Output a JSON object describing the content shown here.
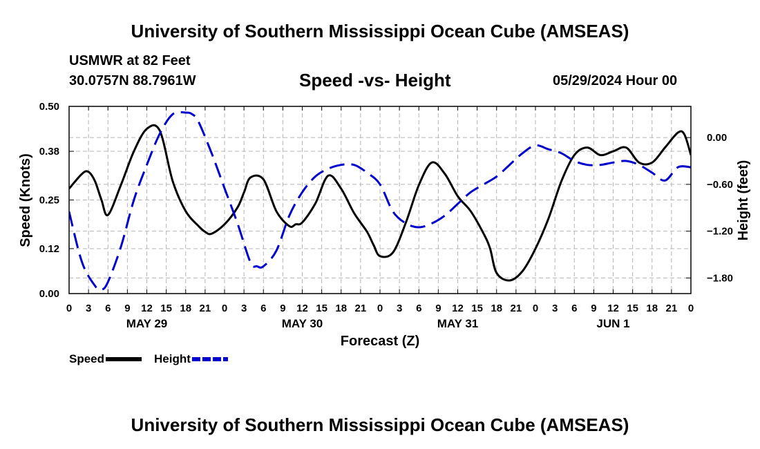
{
  "header": {
    "title": "University of Southern Mississippi Ocean Cube (AMSEAS)",
    "station": "USMWR at 82 Feet",
    "coords": "30.0757N  88.7961W",
    "subtitle": "Speed -vs- Height",
    "datetime": "05/29/2024 Hour 00"
  },
  "footer": {
    "title": "University of Southern Mississippi Ocean Cube (AMSEAS)"
  },
  "chart_data": {
    "type": "line",
    "title": "Speed -vs- Height",
    "xlabel": "Forecast (Z)",
    "ylabel": "Speed (Knots)",
    "y2label": "Height (feet)",
    "xlim": [
      0,
      96
    ],
    "ylim": [
      0,
      0.5
    ],
    "y2lim": [
      -2.0,
      0.4
    ],
    "x_tick_step_hours": 3,
    "x_tick_labels": [
      "0",
      "3",
      "6",
      "9",
      "12",
      "15",
      "18",
      "21",
      "0",
      "3",
      "6",
      "9",
      "12",
      "15",
      "18",
      "21",
      "0",
      "3",
      "6",
      "9",
      "12",
      "15",
      "18",
      "21",
      "0",
      "3",
      "6",
      "9",
      "12",
      "15",
      "18",
      "21",
      "0"
    ],
    "y_ticks": [
      0.0,
      0.12,
      0.25,
      0.38,
      0.5
    ],
    "y_tick_labels": [
      "0.00",
      "0.12",
      "0.25",
      "0.38",
      "0.50"
    ],
    "y2_ticks": [
      0.0,
      -0.6,
      -1.2,
      -1.8
    ],
    "y2_tick_labels": [
      "0.00",
      "−0.60",
      "−1.20",
      "−1.80"
    ],
    "day_labels": [
      {
        "label": "MAY 29",
        "hour": 12
      },
      {
        "label": "MAY 30",
        "hour": 36
      },
      {
        "label": "MAY 31",
        "hour": 60
      },
      {
        "label": "JUN 1",
        "hour": 84
      }
    ],
    "grid": true,
    "legend_position": "bottom-left",
    "series": [
      {
        "name": "Speed",
        "axis": "left",
        "color": "#000000",
        "dash": "solid",
        "x": [
          0,
          2,
          3,
          4,
          5,
          6,
          8,
          10,
          12,
          14,
          16,
          18,
          20,
          21,
          22,
          24,
          26,
          27,
          28,
          30,
          32,
          34,
          35,
          36,
          38,
          40,
          42,
          44,
          46,
          47,
          48,
          50,
          52,
          54,
          56,
          58,
          60,
          62,
          64,
          65,
          66,
          68,
          70,
          72,
          74,
          76,
          78,
          80,
          82,
          84,
          86,
          88,
          90,
          92,
          94,
          95,
          96
        ],
        "values": [
          0.28,
          0.32,
          0.325,
          0.3,
          0.25,
          0.21,
          0.29,
          0.38,
          0.44,
          0.435,
          0.3,
          0.22,
          0.18,
          0.165,
          0.16,
          0.185,
          0.23,
          0.27,
          0.31,
          0.305,
          0.22,
          0.18,
          0.185,
          0.19,
          0.24,
          0.315,
          0.28,
          0.215,
          0.165,
          0.13,
          0.1,
          0.11,
          0.19,
          0.29,
          0.35,
          0.32,
          0.26,
          0.22,
          0.16,
          0.12,
          0.055,
          0.035,
          0.06,
          0.12,
          0.2,
          0.3,
          0.37,
          0.39,
          0.37,
          0.38,
          0.39,
          0.35,
          0.35,
          0.39,
          0.43,
          0.425,
          0.37
        ]
      },
      {
        "name": "Height",
        "axis": "right",
        "color": "#0000cc",
        "dash": "dashed",
        "x": [
          0,
          2,
          4,
          5,
          6,
          8,
          10,
          12,
          14,
          16,
          18,
          19,
          20,
          22,
          24,
          26,
          28,
          29,
          30,
          32,
          34,
          36,
          38,
          40,
          42,
          44,
          46,
          48,
          50,
          52,
          54,
          56,
          58,
          60,
          62,
          64,
          66,
          68,
          70,
          72,
          74,
          76,
          78,
          80,
          82,
          84,
          86,
          88,
          90,
          92,
          94,
          96
        ],
        "values": [
          -0.95,
          -1.6,
          -1.9,
          -1.95,
          -1.85,
          -1.4,
          -0.8,
          -0.35,
          0.05,
          0.3,
          0.32,
          0.3,
          0.2,
          -0.2,
          -0.65,
          -1.1,
          -1.6,
          -1.65,
          -1.65,
          -1.45,
          -1.0,
          -0.7,
          -0.5,
          -0.4,
          -0.35,
          -0.35,
          -0.45,
          -0.6,
          -0.95,
          -1.1,
          -1.15,
          -1.1,
          -1.0,
          -0.85,
          -0.7,
          -0.6,
          -0.5,
          -0.35,
          -0.2,
          -0.1,
          -0.15,
          -0.2,
          -0.3,
          -0.35,
          -0.35,
          -0.32,
          -0.3,
          -0.35,
          -0.45,
          -0.55,
          -0.38,
          -0.38
        ]
      }
    ]
  }
}
